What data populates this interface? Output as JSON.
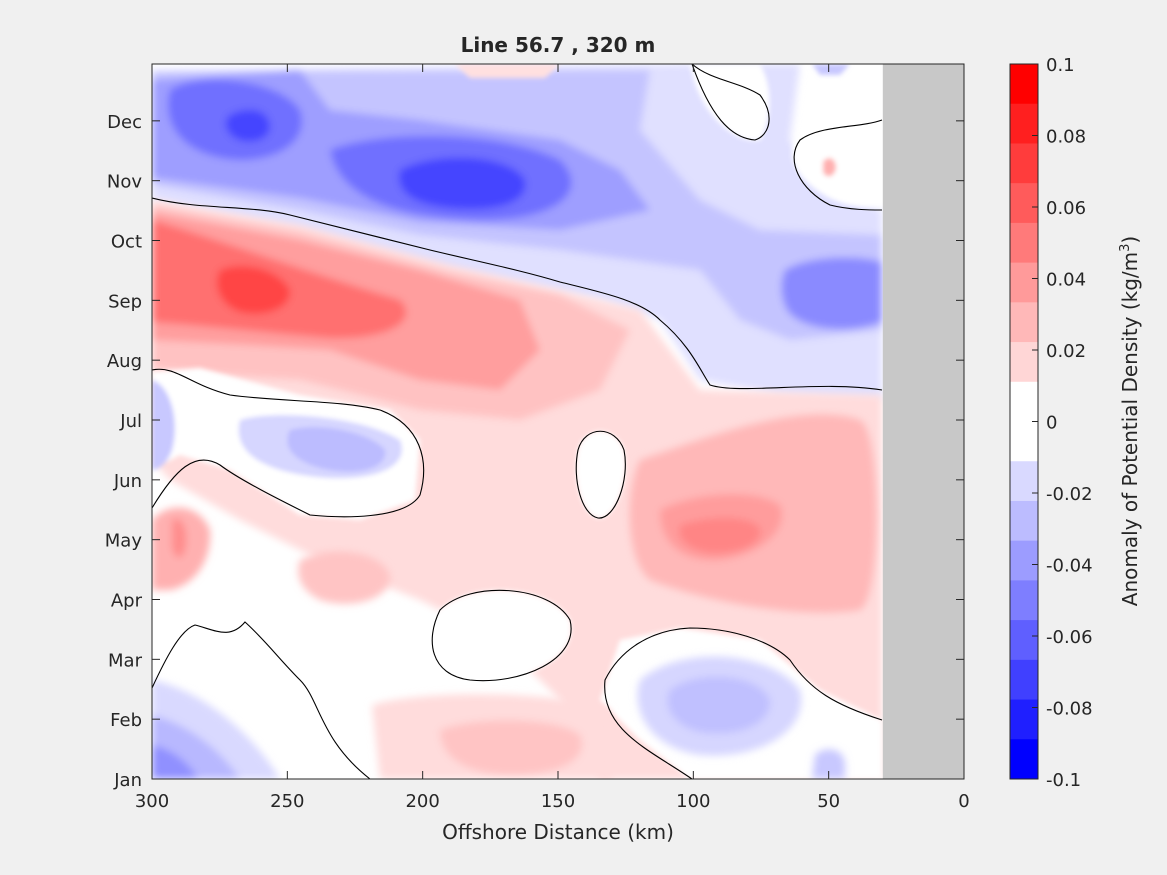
{
  "chart_data": {
    "type": "heatmap",
    "subtype": "filled-contour",
    "title": "Line 56.7 , 320 m",
    "xlabel": "Offshore Distance (km)",
    "ylabel": "",
    "x_axis": {
      "direction": "reversed",
      "xlim": [
        0,
        300
      ],
      "ticks": [
        300,
        250,
        200,
        150,
        100,
        50,
        0
      ],
      "tick_labels": [
        "300",
        "250",
        "200",
        "150",
        "100",
        "50",
        "0"
      ]
    },
    "y_axis": {
      "ylim_months": [
        1,
        12.95
      ],
      "ticks": [
        1,
        2,
        3,
        4,
        5,
        6,
        7,
        8,
        9,
        10,
        11,
        12
      ],
      "tick_labels": [
        "Jan",
        "Feb",
        "Mar",
        "Apr",
        "May",
        "Jun",
        "Jul",
        "Aug",
        "Sep",
        "Oct",
        "Nov",
        "Dec"
      ]
    },
    "no_data_region": {
      "x_from_km": 0,
      "x_to_km": 30,
      "color": "#c8c8c8"
    },
    "zero_contour": true,
    "features": [
      {
        "sign": "negative",
        "x_km": 260,
        "month": 12.0,
        "peak": -0.07
      },
      {
        "sign": "negative",
        "x_km": 180,
        "month": 11.1,
        "peak": -0.08
      },
      {
        "sign": "negative",
        "x_km": 115,
        "month": 10.9,
        "peak": -0.03
      },
      {
        "sign": "negative",
        "x_km": 55,
        "month": 9.0,
        "peak": -0.05
      },
      {
        "sign": "positive",
        "x_km": 260,
        "month": 9.0,
        "peak": 0.08
      },
      {
        "sign": "positive",
        "x_km": 160,
        "month": 8.0,
        "peak": 0.04
      },
      {
        "sign": "negative",
        "x_km": 210,
        "month": 6.5,
        "peak": -0.02
      },
      {
        "sign": "positive",
        "x_km": 90,
        "month": 5.1,
        "peak": 0.04
      },
      {
        "sign": "positive",
        "x_km": 290,
        "month": 5.0,
        "peak": 0.04
      },
      {
        "sign": "positive",
        "x_km": 220,
        "month": 4.4,
        "peak": 0.02
      },
      {
        "sign": "negative",
        "x_km": 80,
        "month": 2.4,
        "peak": -0.02
      },
      {
        "sign": "negative",
        "x_km": 280,
        "month": 1.5,
        "peak": -0.04
      },
      {
        "sign": "negative",
        "x_km": 55,
        "month": 1.15,
        "peak": -0.02
      },
      {
        "sign": "positive",
        "x_km": 160,
        "month": 1.6,
        "peak": 0.02
      },
      {
        "sign": "negative",
        "x_km": 50,
        "month": 12.9,
        "peak": -0.02
      },
      {
        "sign": "positive",
        "x_km": 175,
        "month": 12.9,
        "peak": 0.01
      },
      {
        "sign": "positive",
        "x_km": 50,
        "month": 11.2,
        "peak": 0.02
      }
    ],
    "colorbar": {
      "label": "Anomaly of Potential Density (kg/m",
      "label_superscript": "3",
      "label_suffix": ")",
      "limits": [
        -0.1,
        0.1
      ],
      "tick_labels": [
        "0.1",
        "0.08",
        "0.06",
        "0.04",
        "0.02",
        "0",
        "-0.02",
        "-0.04",
        "-0.06",
        "-0.08",
        "-0.1"
      ],
      "colors_top_to_bottom": [
        "#ff0000",
        "#ff1f1f",
        "#ff3c3c",
        "#ff5b5b",
        "#ff7a7a",
        "#ff9a9a",
        "#ffb8b8",
        "#ffd6d6",
        "#ffffff",
        "#ffffff",
        "#d9d9ff",
        "#bcbcff",
        "#9c9cff",
        "#7e7eff",
        "#5f5fff",
        "#4040ff",
        "#1f1fff",
        "#0000ff"
      ]
    }
  }
}
